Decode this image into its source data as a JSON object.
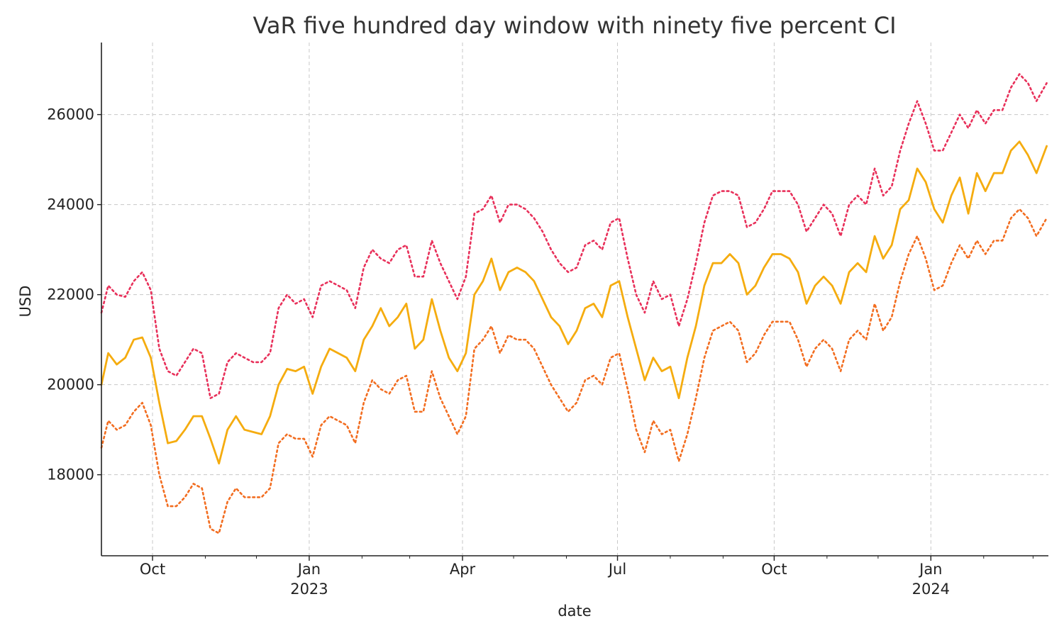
{
  "chart_data": {
    "type": "line",
    "title": "VaR five hundred day window with ninety five percent CI",
    "xlabel": "date",
    "ylabel": "USD",
    "x_range": [
      "2022-09-01",
      "2024-03-10"
    ],
    "ylim": [
      16200,
      27600
    ],
    "grid": true,
    "grid_style": "dashed",
    "legend": "none",
    "x_ticks": [
      {
        "date": "2022-10-01",
        "label": "Oct",
        "sub": ""
      },
      {
        "date": "2023-01-01",
        "label": "Jan",
        "sub": "2023"
      },
      {
        "date": "2023-04-01",
        "label": "Apr",
        "sub": ""
      },
      {
        "date": "2023-07-01",
        "label": "Jul",
        "sub": ""
      },
      {
        "date": "2023-10-01",
        "label": "Oct",
        "sub": ""
      },
      {
        "date": "2024-01-01",
        "label": "Jan",
        "sub": "2024"
      }
    ],
    "y_ticks": [
      18000,
      20000,
      22000,
      24000,
      26000
    ],
    "x": [
      "2022-09-01",
      "2022-09-05",
      "2022-09-10",
      "2022-09-15",
      "2022-09-20",
      "2022-09-25",
      "2022-09-30",
      "2022-10-05",
      "2022-10-10",
      "2022-10-15",
      "2022-10-20",
      "2022-10-25",
      "2022-10-30",
      "2022-11-04",
      "2022-11-09",
      "2022-11-14",
      "2022-11-19",
      "2022-11-24",
      "2022-11-29",
      "2022-12-04",
      "2022-12-09",
      "2022-12-14",
      "2022-12-19",
      "2022-12-24",
      "2022-12-29",
      "2023-01-03",
      "2023-01-08",
      "2023-01-13",
      "2023-01-18",
      "2023-01-23",
      "2023-01-28",
      "2023-02-02",
      "2023-02-07",
      "2023-02-12",
      "2023-02-17",
      "2023-02-22",
      "2023-02-27",
      "2023-03-04",
      "2023-03-09",
      "2023-03-14",
      "2023-03-19",
      "2023-03-24",
      "2023-03-29",
      "2023-04-03",
      "2023-04-08",
      "2023-04-13",
      "2023-04-18",
      "2023-04-23",
      "2023-04-28",
      "2023-05-03",
      "2023-05-08",
      "2023-05-13",
      "2023-05-18",
      "2023-05-23",
      "2023-05-28",
      "2023-06-02",
      "2023-06-07",
      "2023-06-12",
      "2023-06-17",
      "2023-06-22",
      "2023-06-27",
      "2023-07-02",
      "2023-07-07",
      "2023-07-12",
      "2023-07-17",
      "2023-07-22",
      "2023-07-27",
      "2023-08-01",
      "2023-08-06",
      "2023-08-11",
      "2023-08-16",
      "2023-08-21",
      "2023-08-26",
      "2023-08-31",
      "2023-09-05",
      "2023-09-10",
      "2023-09-15",
      "2023-09-20",
      "2023-09-25",
      "2023-09-30",
      "2023-10-05",
      "2023-10-10",
      "2023-10-15",
      "2023-10-20",
      "2023-10-25",
      "2023-10-30",
      "2023-11-04",
      "2023-11-09",
      "2023-11-14",
      "2023-11-19",
      "2023-11-24",
      "2023-11-29",
      "2023-12-04",
      "2023-12-09",
      "2023-12-14",
      "2023-12-19",
      "2023-12-24",
      "2023-12-29",
      "2024-01-03",
      "2024-01-08",
      "2024-01-13",
      "2024-01-18",
      "2024-01-23",
      "2024-01-28",
      "2024-02-02",
      "2024-02-07",
      "2024-02-12",
      "2024-02-17",
      "2024-02-22",
      "2024-02-27",
      "2024-03-03",
      "2024-03-09"
    ],
    "series": [
      {
        "color": "#f5ac0f",
        "style": "solid",
        "values": [
          20000,
          20700,
          20450,
          20600,
          21000,
          21050,
          20600,
          19600,
          18700,
          18750,
          19000,
          19300,
          19300,
          18800,
          18250,
          19000,
          19300,
          19000,
          18950,
          18900,
          19300,
          20000,
          20350,
          20300,
          20400,
          19800,
          20400,
          20800,
          20700,
          20600,
          20300,
          21000,
          21300,
          21700,
          21300,
          21500,
          21800,
          20800,
          21000,
          21900,
          21200,
          20600,
          20300,
          20700,
          22000,
          22300,
          22800,
          22100,
          22500,
          22600,
          22500,
          22300,
          21900,
          21500,
          21300,
          20900,
          21200,
          21700,
          21800,
          21500,
          22200,
          22300,
          21500,
          20800,
          20100,
          20600,
          20300,
          20400,
          19700,
          20600,
          21300,
          22200,
          22700,
          22700,
          22900,
          22700,
          22000,
          22200,
          22600,
          22900,
          22900,
          22800,
          22500,
          21800,
          22200,
          22400,
          22200,
          21800,
          22500,
          22700,
          22500,
          23300,
          22800,
          23100,
          23900,
          24100,
          24800,
          24500,
          23900,
          23600,
          24200,
          24600,
          23800,
          24700,
          24300,
          24700,
          24700,
          25200,
          25400,
          25100,
          24700,
          25300
        ]
      },
      {
        "color": "#e8305a",
        "style": "dotted",
        "values": [
          21600,
          22200,
          22000,
          21950,
          22300,
          22500,
          22100,
          20800,
          20300,
          20200,
          20500,
          20800,
          20700,
          19700,
          19800,
          20500,
          20700,
          20600,
          20500,
          20500,
          20700,
          21700,
          22000,
          21800,
          21900,
          21500,
          22200,
          22300,
          22200,
          22100,
          21700,
          22600,
          23000,
          22800,
          22700,
          23000,
          23100,
          22400,
          22400,
          23200,
          22700,
          22300,
          21900,
          22400,
          23800,
          23900,
          24200,
          23600,
          24000,
          24000,
          23900,
          23700,
          23400,
          23000,
          22700,
          22500,
          22600,
          23100,
          23200,
          23000,
          23600,
          23700,
          22800,
          22000,
          21600,
          22300,
          21900,
          22000,
          21300,
          21900,
          22700,
          23600,
          24200,
          24300,
          24300,
          24200,
          23500,
          23600,
          23900,
          24300,
          24300,
          24300,
          24000,
          23400,
          23700,
          24000,
          23800,
          23300,
          24000,
          24200,
          24000,
          24800,
          24200,
          24400,
          25200,
          25800,
          26300,
          25800,
          25200,
          25200,
          25600,
          26000,
          25700,
          26100,
          25800,
          26100,
          26100,
          26600,
          26900,
          26700,
          26300,
          26700
        ]
      },
      {
        "color": "#f26d20",
        "style": "dotted",
        "values": [
          18600,
          19200,
          19000,
          19100,
          19400,
          19600,
          19100,
          18000,
          17300,
          17300,
          17500,
          17800,
          17700,
          16800,
          16700,
          17400,
          17700,
          17500,
          17500,
          17500,
          17700,
          18700,
          18900,
          18800,
          18800,
          18400,
          19100,
          19300,
          19200,
          19100,
          18700,
          19600,
          20100,
          19900,
          19800,
          20100,
          20200,
          19400,
          19400,
          20300,
          19700,
          19300,
          18900,
          19300,
          20800,
          21000,
          21300,
          20700,
          21100,
          21000,
          21000,
          20800,
          20400,
          20000,
          19700,
          19400,
          19600,
          20100,
          20200,
          20000,
          20600,
          20700,
          19900,
          19000,
          18500,
          19200,
          18900,
          19000,
          18300,
          18900,
          19700,
          20600,
          21200,
          21300,
          21400,
          21200,
          20500,
          20700,
          21100,
          21400,
          21400,
          21400,
          21000,
          20400,
          20800,
          21000,
          20800,
          20300,
          21000,
          21200,
          21000,
          21800,
          21200,
          21500,
          22300,
          22900,
          23300,
          22800,
          22100,
          22200,
          22700,
          23100,
          22800,
          23200,
          22900,
          23200,
          23200,
          23700,
          23900,
          23700,
          23300,
          23700
        ]
      }
    ]
  }
}
